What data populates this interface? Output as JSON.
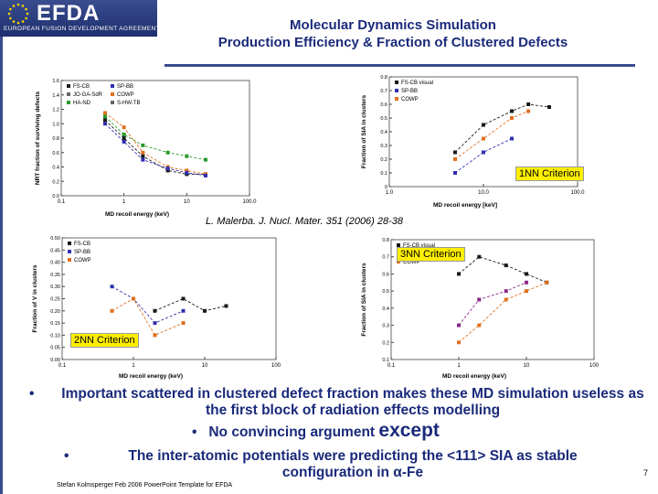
{
  "logo": {
    "name": "EFDA",
    "subtitle": "EUROPEAN FUSION DEVELOPMENT AGREEMENT"
  },
  "title": {
    "line1": "Molecular Dynamics Simulation",
    "line2": "Production Efficiency & Fraction of Clustered Defects"
  },
  "citation": "L. Malerba. J. Nucl. Mater. 351 (2006) 28-38",
  "criteria": {
    "c1": "1NN Criterion",
    "c2": "2NN Criterion",
    "c3": "3NN Criterion"
  },
  "bullets": {
    "b1": "Important scattered in clustered defect fraction makes these MD simulation useless as the first block of radiation effects modelling",
    "b2a": "No convincing argument",
    "b2b": "except",
    "b3": "The inter-atomic potentials were predicting the <111> SIA as stable configuration in α-Fe"
  },
  "footer": "Stefan Kolmsperger Feb 2006 PowerPoint Template for EFDA",
  "page_number": "7",
  "chart_data": [
    {
      "type": "scatter",
      "xlabel": "MD recoil energy (keV)",
      "ylabel": "NRT fraction of surviving defects",
      "xscale": "log",
      "xlim": [
        0.1,
        100
      ],
      "ylim": [
        0.0,
        1.6
      ],
      "xticks": [
        "0.1",
        "1",
        "10",
        "100.0"
      ],
      "yticks": [
        "0.0",
        "0.2",
        "0.4",
        "0.6",
        "0.8",
        "1.0",
        "1.2",
        "1.4",
        "1.6"
      ],
      "legend": [
        "FS-CB",
        "JO-GA-SdR",
        "HA-ND",
        "SP-BB",
        "COWP",
        "S-HW-TB"
      ],
      "series": [
        {
          "name": "FS-CB",
          "color": "#1a1a1a",
          "x": [
            0.5,
            1,
            2,
            5,
            10,
            20
          ],
          "y": [
            1.05,
            0.8,
            0.55,
            0.35,
            0.3,
            0.3
          ]
        },
        {
          "name": "HA-ND",
          "color": "#2a9a2a",
          "x": [
            0.5,
            1,
            2,
            5,
            10,
            20
          ],
          "y": [
            1.1,
            0.85,
            0.7,
            0.6,
            0.55,
            0.5
          ]
        },
        {
          "name": "COWP",
          "color": "#e07020",
          "x": [
            0.5,
            1,
            2,
            5,
            10,
            20
          ],
          "y": [
            1.15,
            0.95,
            0.6,
            0.4,
            0.35,
            0.3
          ]
        },
        {
          "name": "SP-BB",
          "color": "#3030b0",
          "x": [
            0.5,
            1,
            2,
            5,
            10,
            20
          ],
          "y": [
            1.0,
            0.75,
            0.5,
            0.38,
            0.32,
            0.28
          ]
        }
      ]
    },
    {
      "type": "scatter",
      "xlabel": "MD recoil energy [keV]",
      "ylabel": "Fraction of SIA in clusters",
      "xscale": "log",
      "xlim": [
        1,
        100
      ],
      "ylim": [
        0,
        0.8
      ],
      "xticks": [
        "1.0",
        "10.0",
        "100.0"
      ],
      "yticks": [
        "0",
        "0.1",
        "0.2",
        "0.3",
        "0.4",
        "0.5",
        "0.6",
        "0.7",
        "0.8"
      ],
      "legend": [
        "FS-CB visual",
        "SP-BB",
        "COWP"
      ],
      "series": [
        {
          "name": "FS-CB visual",
          "color": "#1a1a1a",
          "x": [
            5,
            10,
            20,
            30,
            50
          ],
          "y": [
            0.25,
            0.45,
            0.55,
            0.6,
            0.58
          ]
        },
        {
          "name": "SP-BB",
          "color": "#3030b0",
          "x": [
            5,
            10,
            20
          ],
          "y": [
            0.1,
            0.25,
            0.35
          ]
        },
        {
          "name": "COWP",
          "color": "#e07020",
          "x": [
            5,
            10,
            20,
            30
          ],
          "y": [
            0.2,
            0.35,
            0.5,
            0.55
          ]
        }
      ]
    },
    {
      "type": "scatter",
      "xlabel": "MD recoil energy (keV)",
      "ylabel": "Fraction of V in clusters",
      "xscale": "log",
      "xlim": [
        0.1,
        100
      ],
      "ylim": [
        0,
        0.5
      ],
      "xticks": [
        "0.1",
        "1",
        "10",
        "100"
      ],
      "yticks": [
        "0.00",
        "0.05",
        "0.10",
        "0.15",
        "0.20",
        "0.25",
        "0.30",
        "0.35",
        "0.40",
        "0.45",
        "0.50"
      ],
      "legend": [
        "FS-CB",
        "SP-BB",
        "COWP"
      ],
      "series": [
        {
          "name": "FS-CB",
          "color": "#1a1a1a",
          "x": [
            2,
            5,
            10,
            20
          ],
          "y": [
            0.2,
            0.25,
            0.2,
            0.22
          ]
        },
        {
          "name": "SP-BB",
          "color": "#3030b0",
          "x": [
            0.5,
            1,
            2,
            5
          ],
          "y": [
            0.3,
            0.25,
            0.15,
            0.2
          ]
        },
        {
          "name": "COWP",
          "color": "#e07020",
          "x": [
            0.5,
            1,
            2,
            5
          ],
          "y": [
            0.2,
            0.25,
            0.1,
            0.15
          ]
        }
      ]
    },
    {
      "type": "scatter",
      "xlabel": "MD recoil energy (keV)",
      "ylabel": "Fraction of SIA in clusters",
      "xscale": "log",
      "xlim": [
        0.1,
        100
      ],
      "ylim": [
        0.1,
        0.8
      ],
      "xticks": [
        "0.1",
        "1",
        "10",
        "100"
      ],
      "yticks": [
        "0.1",
        "0.2",
        "0.3",
        "0.4",
        "0.5",
        "0.6",
        "0.7",
        "0.8"
      ],
      "legend": [
        "FS-CB visual",
        "JO-GA-SdR",
        "COWP"
      ],
      "series": [
        {
          "name": "FS-CB visual",
          "color": "#1a1a1a",
          "x": [
            1,
            2,
            5,
            10,
            20
          ],
          "y": [
            0.6,
            0.7,
            0.65,
            0.6,
            0.55
          ]
        },
        {
          "name": "JO-GA-SdR",
          "color": "#8a2a8a",
          "x": [
            1,
            2,
            5,
            10
          ],
          "y": [
            0.3,
            0.45,
            0.5,
            0.55
          ]
        },
        {
          "name": "COWP",
          "color": "#e07020",
          "x": [
            1,
            2,
            5,
            10,
            20
          ],
          "y": [
            0.2,
            0.3,
            0.45,
            0.5,
            0.55
          ]
        }
      ]
    }
  ]
}
